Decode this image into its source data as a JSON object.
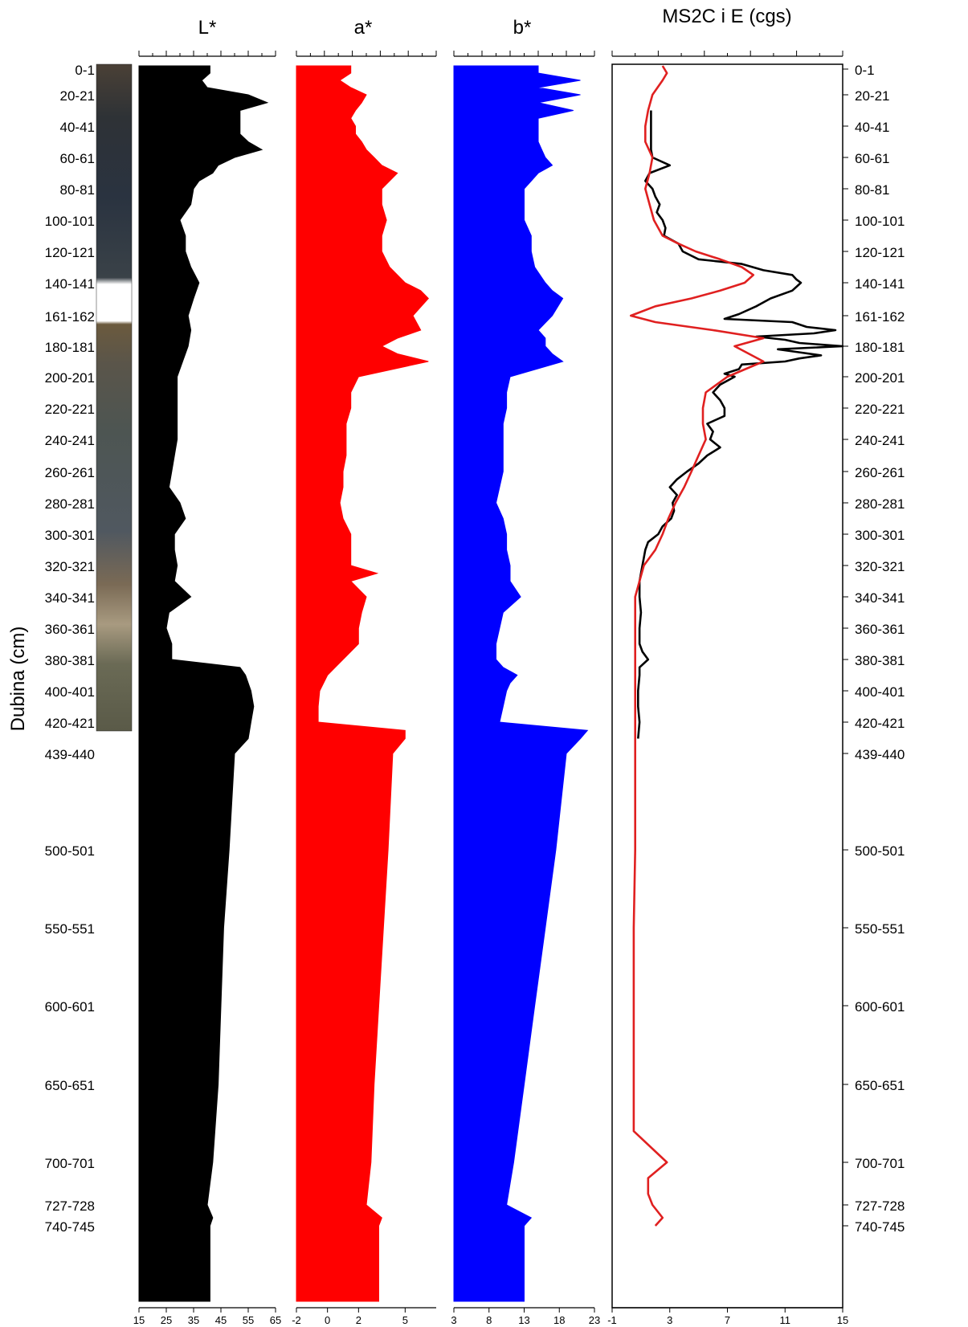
{
  "figure": {
    "ylabel": "Dubina (cm)",
    "depth_tick_labels": [
      "0-1",
      "20-21",
      "40-41",
      "60-61",
      "80-81",
      "100-101",
      "120-121",
      "140-141",
      "161-162",
      "180-181",
      "200-201",
      "220-221",
      "240-241",
      "260-261",
      "280-281",
      "300-301",
      "320-321",
      "340-341",
      "360-361",
      "380-381",
      "400-401",
      "420-421",
      "439-440",
      "500-501",
      "550-551",
      "600-601",
      "650-651",
      "700-701",
      "727-728",
      "740-745"
    ],
    "colors": {
      "L": "#000000",
      "a": "#ff0000",
      "b": "#0000ff",
      "ms_black": "#000000",
      "ms_red": "#e02020",
      "axis": "#000000"
    }
  },
  "chart_data": [
    {
      "type": "area",
      "title": "L*",
      "xlim": [
        15,
        65
      ],
      "x_tick_labels": [
        "15",
        "25",
        "35",
        "45",
        "55",
        "65"
      ],
      "depth": [
        0,
        5,
        10,
        15,
        20,
        25,
        30,
        35,
        40,
        45,
        50,
        55,
        60,
        65,
        70,
        75,
        80,
        90,
        100,
        110,
        120,
        130,
        140,
        150,
        161,
        170,
        180,
        190,
        200,
        210,
        220,
        230,
        240,
        250,
        260,
        270,
        280,
        290,
        300,
        310,
        320,
        330,
        340,
        350,
        360,
        370,
        380,
        385,
        390,
        395,
        400,
        410,
        420,
        430,
        439,
        500,
        550,
        600,
        650,
        700,
        727,
        735,
        740
      ],
      "values": [
        41,
        41,
        38,
        40,
        55,
        62,
        52,
        52,
        52,
        52,
        55,
        60,
        50,
        44,
        42,
        37,
        35,
        34,
        30,
        32,
        32,
        34,
        37,
        35,
        33,
        34,
        33,
        31,
        29,
        29,
        29,
        29,
        29,
        28,
        27,
        26,
        30,
        32,
        28,
        28,
        29,
        28,
        34,
        26,
        25,
        27,
        27,
        52,
        54,
        55,
        56,
        57,
        56,
        55,
        50,
        48,
        46,
        45,
        44,
        42,
        40,
        42,
        41
      ]
    },
    {
      "type": "area",
      "title": "a*",
      "xlim": [
        -2,
        7
      ],
      "x_tick_labels": [
        "-2",
        "0",
        "2",
        "5"
      ],
      "depth": [
        0,
        5,
        10,
        15,
        20,
        25,
        30,
        35,
        40,
        45,
        50,
        55,
        60,
        65,
        70,
        75,
        80,
        90,
        100,
        110,
        120,
        130,
        140,
        145,
        150,
        161,
        170,
        175,
        180,
        185,
        190,
        200,
        210,
        220,
        230,
        240,
        250,
        260,
        270,
        280,
        290,
        300,
        310,
        320,
        325,
        330,
        340,
        350,
        360,
        370,
        380,
        385,
        390,
        400,
        410,
        420,
        425,
        430,
        439,
        500,
        550,
        600,
        650,
        700,
        727,
        735,
        740
      ],
      "values": [
        1.5,
        1.5,
        0.8,
        1.5,
        2.5,
        2.2,
        1.8,
        1.5,
        1.8,
        1.8,
        2.2,
        2.5,
        3,
        3.5,
        4.5,
        4,
        3.5,
        3.5,
        3.8,
        3.5,
        3.5,
        4,
        5,
        6,
        6.5,
        5.5,
        6,
        4.5,
        3.5,
        4.5,
        6.5,
        2,
        1.5,
        1.5,
        1.2,
        1.2,
        1.2,
        1,
        1,
        0.8,
        1,
        1.5,
        1.5,
        1.5,
        3.2,
        1.5,
        2.5,
        2.2,
        2,
        2,
        1,
        0.5,
        0,
        -0.5,
        -0.6,
        -0.6,
        5,
        5,
        4.2,
        3.9,
        3.6,
        3.3,
        3,
        2.8,
        2.5,
        3.5,
        3.3
      ]
    },
    {
      "type": "area",
      "title": "b*",
      "xlim": [
        3,
        23
      ],
      "x_tick_labels": [
        "3",
        "8",
        "13",
        "18",
        "23"
      ],
      "depth": [
        0,
        5,
        10,
        15,
        20,
        25,
        30,
        35,
        40,
        45,
        50,
        55,
        60,
        65,
        70,
        75,
        80,
        90,
        100,
        110,
        120,
        130,
        140,
        145,
        150,
        161,
        170,
        175,
        180,
        185,
        190,
        200,
        210,
        220,
        230,
        240,
        250,
        260,
        270,
        280,
        290,
        300,
        310,
        320,
        330,
        340,
        350,
        360,
        370,
        380,
        385,
        390,
        395,
        400,
        410,
        420,
        425,
        430,
        439,
        500,
        550,
        600,
        650,
        700,
        727,
        735,
        740
      ],
      "values": [
        15,
        15,
        21,
        15,
        21,
        15,
        20,
        15,
        15,
        15,
        15,
        15.5,
        16,
        17,
        15,
        14,
        13,
        13,
        13,
        14,
        14,
        14.5,
        16,
        17,
        18.5,
        17,
        15,
        16,
        16,
        17,
        18.5,
        11,
        10.5,
        10.5,
        10,
        10,
        10,
        10,
        9.5,
        9,
        10,
        10.5,
        10.5,
        11,
        11,
        12.5,
        10,
        9.5,
        9,
        9,
        10,
        12,
        11,
        10.5,
        10,
        9.5,
        22,
        21,
        19,
        17.5,
        16,
        14.5,
        13,
        11.5,
        10.5,
        14,
        13
      ]
    },
    {
      "type": "line",
      "title": "MS2C i E (cgs)",
      "xlim": [
        -1,
        15
      ],
      "x_tick_labels": [
        "-1",
        "3",
        "7",
        "11",
        "15"
      ],
      "series": [
        {
          "depth": [
            30,
            35,
            40,
            50,
            55,
            60,
            65,
            70,
            75,
            80,
            85,
            90,
            95,
            100,
            105,
            110,
            115,
            120,
            125,
            128,
            132,
            135,
            138,
            140,
            145,
            150,
            155,
            160,
            163,
            165,
            168,
            170,
            172,
            174,
            176,
            178,
            180,
            182,
            184,
            186,
            188,
            190,
            192,
            195,
            198,
            200,
            205,
            210,
            215,
            220,
            225,
            230,
            235,
            240,
            245,
            250,
            255,
            260,
            265,
            270,
            275,
            280,
            285,
            290,
            295,
            300,
            305,
            310,
            315,
            320,
            330,
            340,
            350,
            360,
            370,
            375,
            380,
            385,
            390,
            400,
            410,
            420,
            430
          ],
          "values": [
            1.7,
            1.7,
            1.7,
            1.7,
            1.7,
            1.8,
            3.0,
            1.6,
            1.3,
            1.8,
            2.0,
            2.3,
            2.1,
            2.5,
            2.7,
            2.6,
            3.6,
            3.9,
            5.0,
            8.0,
            9.5,
            11.5,
            11.8,
            12.1,
            11.5,
            10.0,
            9.0,
            7.8,
            6.8,
            11.5,
            12.5,
            14.5,
            13.0,
            9.0,
            11.0,
            12.0,
            15.0,
            10.5,
            12.0,
            13.5,
            12.0,
            11.0,
            8.0,
            7.8,
            6.8,
            7.5,
            6.5,
            6.0,
            6.5,
            6.8,
            6.8,
            5.6,
            6.0,
            5.8,
            6.5,
            5.6,
            5.0,
            4.2,
            3.5,
            3.0,
            3.5,
            3.2,
            3.3,
            3.1,
            2.5,
            2.2,
            1.5,
            1.3,
            1.2,
            1.1,
            0.9,
            0.9,
            1.0,
            0.9,
            0.9,
            1.1,
            1.5,
            0.9,
            0.9,
            0.8,
            0.8,
            0.9,
            0.8
          ]
        },
        {
          "depth": [
            0,
            5,
            10,
            20,
            30,
            40,
            50,
            60,
            70,
            80,
            90,
            100,
            110,
            115,
            120,
            125,
            130,
            135,
            140,
            145,
            150,
            155,
            161,
            165,
            170,
            175,
            180,
            185,
            190,
            200,
            210,
            220,
            230,
            240,
            250,
            260,
            270,
            280,
            290,
            300,
            310,
            320,
            330,
            340,
            350,
            360,
            370,
            380,
            390,
            400,
            420,
            440,
            500,
            550,
            600,
            650,
            680,
            700,
            710,
            720,
            727,
            735,
            740
          ],
          "values": [
            2.5,
            2.8,
            2.5,
            1.8,
            1.5,
            1.3,
            1.3,
            1.8,
            1.6,
            1.3,
            1.6,
            1.9,
            2.5,
            3.6,
            4.8,
            6.5,
            8.0,
            8.8,
            8.2,
            6.5,
            4.5,
            2.0,
            0.3,
            2.0,
            6.0,
            9.5,
            7.5,
            8.5,
            9.5,
            7.0,
            5.5,
            5.3,
            5.3,
            5.5,
            5.0,
            4.5,
            4.0,
            3.4,
            2.9,
            2.5,
            2.0,
            1.2,
            0.9,
            0.6,
            0.6,
            0.6,
            0.6,
            0.6,
            0.6,
            0.6,
            0.6,
            0.6,
            0.6,
            0.5,
            0.5,
            0.5,
            0.5,
            2.8,
            1.5,
            1.5,
            1.8,
            2.5,
            2.0
          ]
        }
      ]
    }
  ]
}
